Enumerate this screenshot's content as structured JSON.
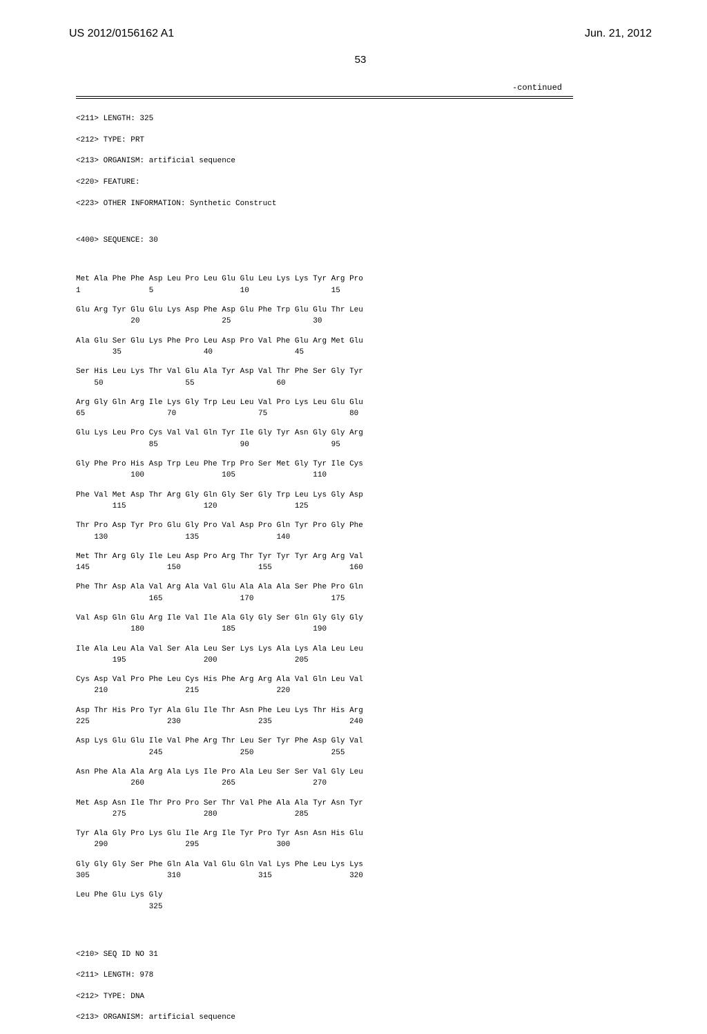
{
  "header": {
    "publication_number": "US 2012/0156162 A1",
    "publication_date": "Jun. 21, 2012"
  },
  "page_number": "53",
  "continued_label": "-continued",
  "seq_header": {
    "line1": "<211> LENGTH: 325",
    "line2": "<212> TYPE: PRT",
    "line3": "<213> ORGANISM: artificial sequence",
    "line4": "<220> FEATURE:",
    "line5": "<223> OTHER INFORMATION: Synthetic Construct",
    "line6": "<400> SEQUENCE: 30"
  },
  "sequence_rows": [
    {
      "aa": "Met Ala Phe Phe Asp Leu Pro Leu Glu Glu Leu Lys Lys Tyr Arg Pro",
      "nums": "1               5                   10                  15"
    },
    {
      "aa": "Glu Arg Tyr Glu Glu Lys Asp Phe Asp Glu Phe Trp Glu Glu Thr Leu",
      "nums": "            20                  25                  30"
    },
    {
      "aa": "Ala Glu Ser Glu Lys Phe Pro Leu Asp Pro Val Phe Glu Arg Met Glu",
      "nums": "        35                  40                  45"
    },
    {
      "aa": "Ser His Leu Lys Thr Val Glu Ala Tyr Asp Val Thr Phe Ser Gly Tyr",
      "nums": "    50                  55                  60"
    },
    {
      "aa": "Arg Gly Gln Arg Ile Lys Gly Trp Leu Leu Val Pro Lys Leu Glu Glu",
      "nums": "65                  70                  75                  80"
    },
    {
      "aa": "Glu Lys Leu Pro Cys Val Val Gln Tyr Ile Gly Tyr Asn Gly Gly Arg",
      "nums": "                85                  90                  95"
    },
    {
      "aa": "Gly Phe Pro His Asp Trp Leu Phe Trp Pro Ser Met Gly Tyr Ile Cys",
      "nums": "            100                 105                 110"
    },
    {
      "aa": "Phe Val Met Asp Thr Arg Gly Gln Gly Ser Gly Trp Leu Lys Gly Asp",
      "nums": "        115                 120                 125"
    },
    {
      "aa": "Thr Pro Asp Tyr Pro Glu Gly Pro Val Asp Pro Gln Tyr Pro Gly Phe",
      "nums": "    130                 135                 140"
    },
    {
      "aa": "Met Thr Arg Gly Ile Leu Asp Pro Arg Thr Tyr Tyr Tyr Arg Arg Val",
      "nums": "145                 150                 155                 160"
    },
    {
      "aa": "Phe Thr Asp Ala Val Arg Ala Val Glu Ala Ala Ala Ser Phe Pro Gln",
      "nums": "                165                 170                 175"
    },
    {
      "aa": "Val Asp Gln Glu Arg Ile Val Ile Ala Gly Gly Ser Gln Gly Gly Gly",
      "nums": "            180                 185                 190"
    },
    {
      "aa": "Ile Ala Leu Ala Val Ser Ala Leu Ser Lys Lys Ala Lys Ala Leu Leu",
      "nums": "        195                 200                 205"
    },
    {
      "aa": "Cys Asp Val Pro Phe Leu Cys His Phe Arg Arg Ala Val Gln Leu Val",
      "nums": "    210                 215                 220"
    },
    {
      "aa": "Asp Thr His Pro Tyr Ala Glu Ile Thr Asn Phe Leu Lys Thr His Arg",
      "nums": "225                 230                 235                 240"
    },
    {
      "aa": "Asp Lys Glu Glu Ile Val Phe Arg Thr Leu Ser Tyr Phe Asp Gly Val",
      "nums": "                245                 250                 255"
    },
    {
      "aa": "Asn Phe Ala Ala Arg Ala Lys Ile Pro Ala Leu Ser Ser Val Gly Leu",
      "nums": "            260                 265                 270"
    },
    {
      "aa": "Met Asp Asn Ile Thr Pro Pro Ser Thr Val Phe Ala Ala Tyr Asn Tyr",
      "nums": "        275                 280                 285"
    },
    {
      "aa": "Tyr Ala Gly Pro Lys Glu Ile Arg Ile Tyr Pro Tyr Asn Asn His Glu",
      "nums": "    290                 295                 300"
    },
    {
      "aa": "Gly Gly Gly Ser Phe Gln Ala Val Glu Gln Val Lys Phe Leu Lys Lys",
      "nums": "305                 310                 315                 320"
    },
    {
      "aa": "Leu Phe Glu Lys Gly",
      "nums": "                325"
    }
  ],
  "next_seq": {
    "line1": "<210> SEQ ID NO 31",
    "line2": "<211> LENGTH: 978",
    "line3": "<212> TYPE: DNA",
    "line4": "<213> ORGANISM: artificial sequence"
  }
}
